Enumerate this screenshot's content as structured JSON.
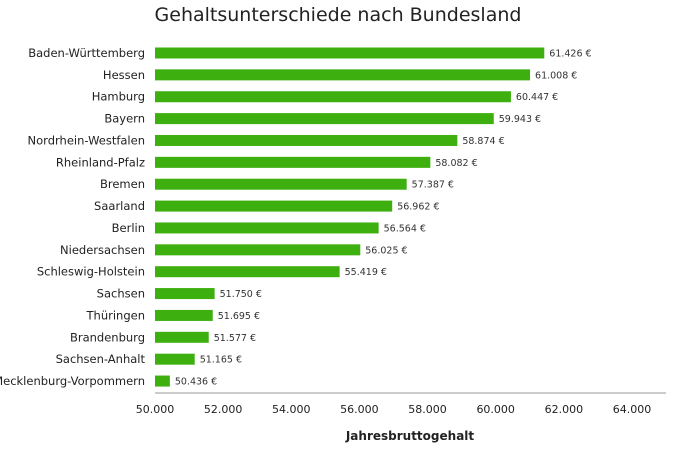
{
  "chart_data": {
    "type": "bar",
    "orientation": "horizontal",
    "title": "Gehaltsunterschiede nach Bundesland",
    "xlabel": "Jahresbruttogehalt",
    "ylabel": "",
    "xlim": [
      50000,
      65000
    ],
    "xticks": [
      50000,
      52000,
      54000,
      56000,
      58000,
      60000,
      62000,
      64000
    ],
    "xtick_labels": [
      "50.000",
      "52.000",
      "54.000",
      "56.000",
      "58.000",
      "60.000",
      "62.000",
      "64.000"
    ],
    "grid": false,
    "bar_color": "#3daf0e",
    "categories": [
      "Baden-Württemberg",
      "Hessen",
      "Hamburg",
      "Bayern",
      "Nordrhein-Westfalen",
      "Rheinland-Pfalz",
      "Bremen",
      "Saarland",
      "Berlin",
      "Niedersachsen",
      "Schleswig-Holstein",
      "Sachsen",
      "Thüringen",
      "Brandenburg",
      "Sachsen-Anhalt",
      "Mecklenburg-Vorpommern"
    ],
    "values": [
      61426,
      61008,
      60447,
      59943,
      58874,
      58082,
      57387,
      56962,
      56564,
      56025,
      55419,
      51750,
      51695,
      51577,
      51165,
      50436
    ],
    "value_labels": [
      "61.426 €",
      "61.008 €",
      "60.447 €",
      "59.943 €",
      "58.874 €",
      "58.082 €",
      "57.387 €",
      "56.962 €",
      "56.564 €",
      "56.025 €",
      "55.419 €",
      "51.750 €",
      "51.695 €",
      "51.577 €",
      "51.165 €",
      "50.436 €"
    ]
  }
}
